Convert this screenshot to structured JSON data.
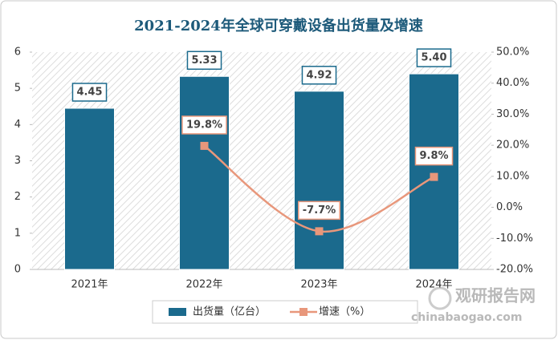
{
  "chart_data": {
    "type": "bar",
    "title": "2021-2024年全球可穿戴设备出货量及增速",
    "categories": [
      "2021年",
      "2022年",
      "2023年",
      "2024年"
    ],
    "series": [
      {
        "name": "出货量（亿台）",
        "type": "bar",
        "color": "#1b6a8d",
        "values": [
          4.45,
          5.33,
          4.92,
          5.4
        ],
        "value_labels": [
          "4.45",
          "5.33",
          "4.92",
          "5.40"
        ]
      },
      {
        "name": "增速（%）",
        "type": "line",
        "axis": "y2",
        "color": "#e8977b",
        "values": [
          null,
          19.8,
          -7.7,
          9.8
        ],
        "value_labels": [
          null,
          "19.8%",
          "-7.7%",
          "9.8%"
        ]
      }
    ],
    "ylim": [
      0,
      6
    ],
    "yticks": [
      0,
      1,
      2,
      3,
      4,
      5,
      6
    ],
    "y2lim": [
      -20,
      50
    ],
    "y2ticks": [
      {
        "value": -20,
        "label": "-20.0%"
      },
      {
        "value": -10,
        "label": "-10.0%"
      },
      {
        "value": 0,
        "label": "0.0%"
      },
      {
        "value": 10,
        "label": "10.0%"
      },
      {
        "value": 20,
        "label": "20.0%"
      },
      {
        "value": 30,
        "label": "30.0%"
      },
      {
        "value": 40,
        "label": "40.0%"
      },
      {
        "value": 50,
        "label": "50.0%"
      }
    ],
    "watermark": [
      "观研报告网",
      "chinabaogao.com"
    ]
  }
}
